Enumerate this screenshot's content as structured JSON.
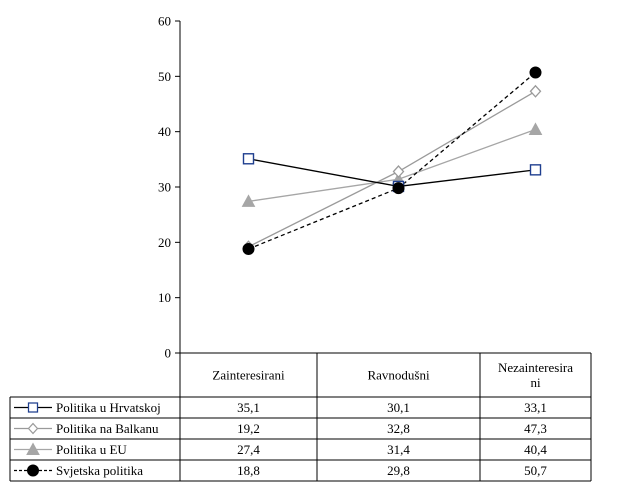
{
  "chart_data": {
    "type": "line",
    "title": "",
    "xlabel": "",
    "ylabel": "",
    "ylim": [
      0,
      60
    ],
    "yticks": [
      0,
      10,
      20,
      30,
      40,
      50,
      60
    ],
    "grid": false,
    "legend": "data-table-below",
    "categories": [
      [
        "Zainteresirani"
      ],
      [
        "Ravnodušni"
      ],
      [
        "Nezainteresira",
        "ni"
      ]
    ],
    "series": [
      {
        "name": "Politika u Hrvatskoj",
        "values": [
          35.1,
          30.1,
          33.1
        ],
        "labels": [
          "35,1",
          "30,1",
          "33,1"
        ],
        "color": "#000000",
        "line": "solid",
        "marker": "square-open",
        "marker_color": "#1f3f8f"
      },
      {
        "name": "Politika na Balkanu",
        "values": [
          19.2,
          32.8,
          47.3
        ],
        "labels": [
          "19,2",
          "32,8",
          "47,3"
        ],
        "color": "#9a9a9a",
        "line": "solid",
        "marker": "diamond-open",
        "marker_color": "#9a9a9a"
      },
      {
        "name": "Politika u EU",
        "values": [
          27.4,
          31.4,
          40.4
        ],
        "labels": [
          "27,4",
          "31,4",
          "40,4"
        ],
        "color": "#a6a6a6",
        "line": "solid",
        "marker": "triangle-filled",
        "marker_color": "#a6a6a6"
      },
      {
        "name": "Svjetska politika",
        "values": [
          18.8,
          29.8,
          50.7
        ],
        "labels": [
          "18,8",
          "29,8",
          "50,7"
        ],
        "color": "#000000",
        "line": "dashed",
        "marker": "circle-filled",
        "marker_color": "#000000"
      }
    ]
  }
}
